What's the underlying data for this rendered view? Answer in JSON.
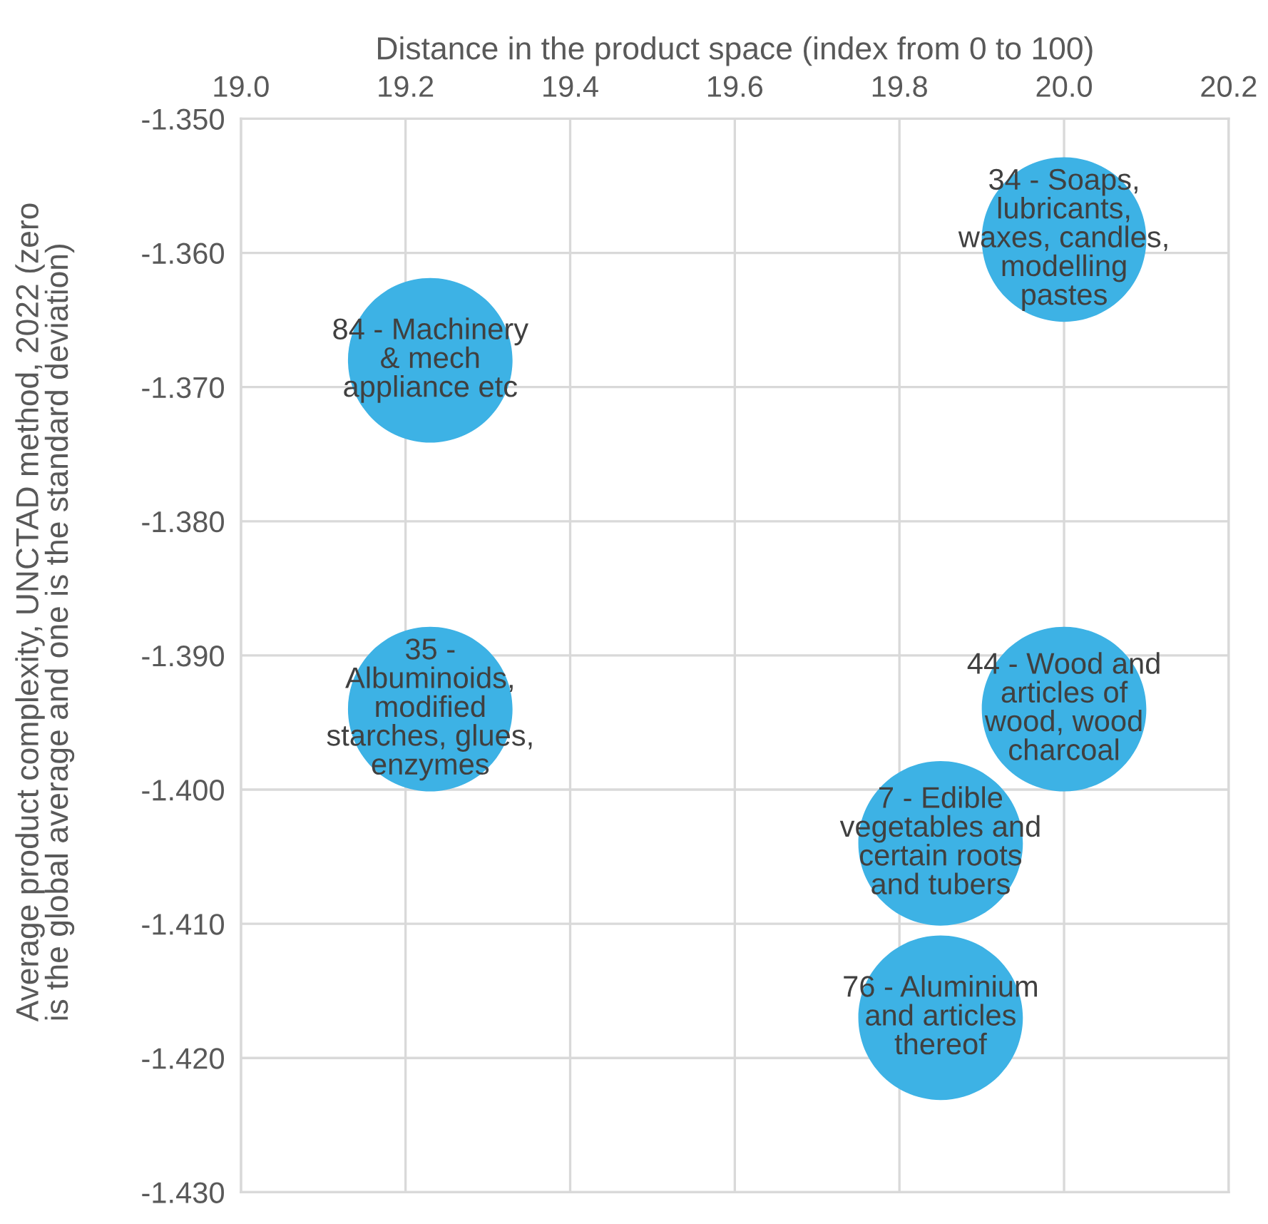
{
  "chart_data": {
    "type": "bubble",
    "xlabel": "Distance in the product space (index from 0 to 100)",
    "ylabel": "Average product complexity, UNCTAD method, 2022 (zero is the global average and one is the standard deviation)",
    "series": [
      {
        "color": "#3db2e5",
        "x": [
          19.23,
          20.0,
          19.23,
          20.0,
          19.85,
          19.85
        ],
        "values": [
          -1.368,
          -1.359,
          -1.394,
          -1.394,
          -1.404,
          -1.417
        ],
        "sizes": [
          1,
          1,
          1,
          1,
          1,
          1
        ]
      }
    ],
    "annotations": [
      {
        "text": "84 - Machinery\n& mech\nappliance etc",
        "x": 19.23,
        "y": -1.368
      },
      {
        "text": "34 - Soaps,\nlubricants,\nwaxes, candles,\nmodelling\npastes",
        "x": 20.0,
        "y": -1.359
      },
      {
        "text": "35 -\nAlbuminoids,\nmodified\nstarches, glues,\nenzymes",
        "x": 19.23,
        "y": -1.394
      },
      {
        "text": "44 - Wood and\narticles of\nwood, wood\ncharcoal",
        "x": 20.0,
        "y": -1.394
      },
      {
        "text": "7 - Edible\nvegetables and\ncertain roots\nand tubers",
        "x": 19.85,
        "y": -1.404
      },
      {
        "text": "76 - Aluminium\nand articles\nthereof",
        "x": 19.85,
        "y": -1.417
      }
    ],
    "xlim": [
      19.0,
      20.2
    ],
    "xticks": [
      {
        "value": 19.0,
        "label": "19.0"
      },
      {
        "value": 19.2,
        "label": "19.2"
      },
      {
        "value": 19.4,
        "label": "19.4"
      },
      {
        "value": 19.6,
        "label": "19.6"
      },
      {
        "value": 19.8,
        "label": "19.8"
      },
      {
        "value": 20.0,
        "label": "20.0"
      },
      {
        "value": 20.2,
        "label": "20.2"
      }
    ],
    "ylim": [
      -1.43,
      -1.35
    ],
    "yticks": [
      {
        "value": -1.35,
        "label": "-1.350"
      },
      {
        "value": -1.36,
        "label": "-1.360"
      },
      {
        "value": -1.37,
        "label": "-1.370"
      },
      {
        "value": -1.38,
        "label": "-1.380"
      },
      {
        "value": -1.39,
        "label": "-1.390"
      },
      {
        "value": -1.4,
        "label": "-1.400"
      },
      {
        "value": -1.41,
        "label": "-1.410"
      },
      {
        "value": -1.42,
        "label": "-1.420"
      },
      {
        "value": -1.43,
        "label": "-1.430"
      }
    ],
    "grid": true
  }
}
